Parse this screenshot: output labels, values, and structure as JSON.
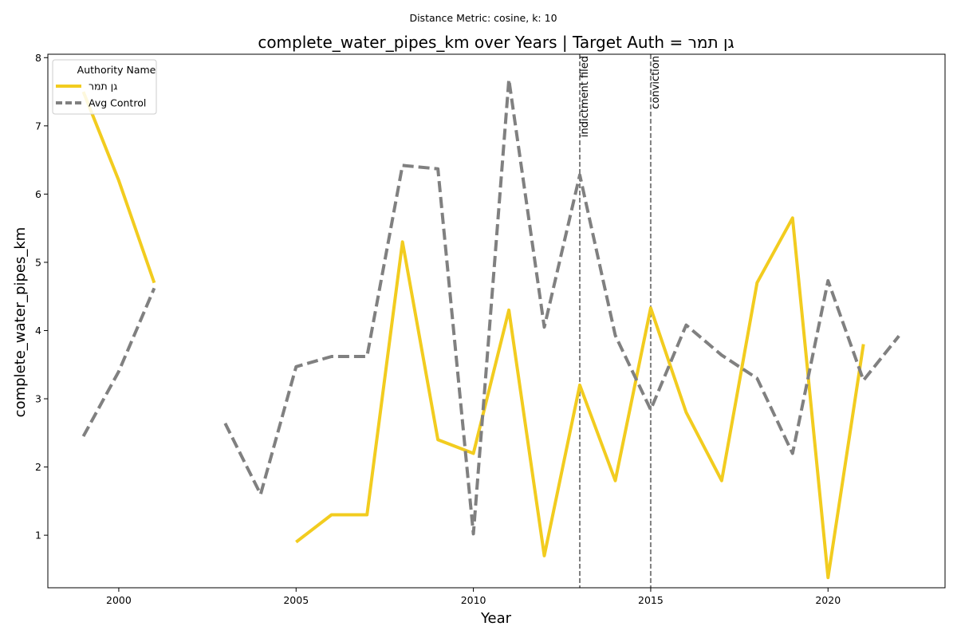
{
  "chart_data": {
    "type": "line",
    "suptitle": "Distance Metric: cosine, k: 10",
    "title": "complete_water_pipes_km over Years | Target Auth = גן תמר",
    "xlabel": "Year",
    "ylabel": "complete_water_pipes_km",
    "xlim": [
      1998.0,
      2023.3
    ],
    "ylim": [
      0.23,
      8.05
    ],
    "xticks": [
      2000,
      2005,
      2010,
      2015,
      2020
    ],
    "yticks": [
      1,
      2,
      3,
      4,
      5,
      6,
      7,
      8
    ],
    "grid": false,
    "legend": {
      "title": "Authority Name",
      "placement": "upper left"
    },
    "series": [
      {
        "name": "גן תמר",
        "color": "#f2cc1f",
        "style": "solid",
        "points": [
          [
            1999,
            7.5
          ],
          [
            2000,
            6.2
          ],
          [
            2001,
            4.7
          ],
          [
            2005,
            0.9
          ],
          [
            2006,
            1.3
          ],
          [
            2007,
            1.3
          ],
          [
            2008,
            5.3
          ],
          [
            2009,
            2.4
          ],
          [
            2010,
            2.2
          ],
          [
            2011,
            4.3
          ],
          [
            2012,
            0.7
          ],
          [
            2013,
            3.2
          ],
          [
            2014,
            1.8
          ],
          [
            2015,
            4.33
          ],
          [
            2016,
            2.8
          ],
          [
            2017,
            1.8
          ],
          [
            2018,
            4.7
          ],
          [
            2019,
            5.65
          ],
          [
            2020,
            0.38
          ],
          [
            2021,
            3.8
          ]
        ]
      },
      {
        "name": "Avg Control",
        "color": "#808080",
        "style": "dashed",
        "points": [
          [
            1999,
            2.45
          ],
          [
            2000,
            3.4
          ],
          [
            2001,
            4.62
          ],
          [
            2003,
            2.64
          ],
          [
            2004,
            1.6
          ],
          [
            2005,
            3.47
          ],
          [
            2006,
            3.62
          ],
          [
            2007,
            3.62
          ],
          [
            2008,
            6.42
          ],
          [
            2009,
            6.37
          ],
          [
            2010,
            1.02
          ],
          [
            2011,
            7.68
          ],
          [
            2012,
            4.05
          ],
          [
            2013,
            6.28
          ],
          [
            2014,
            3.93
          ],
          [
            2015,
            2.84
          ],
          [
            2016,
            4.08
          ],
          [
            2017,
            3.64
          ],
          [
            2018,
            3.3
          ],
          [
            2019,
            2.2
          ],
          [
            2020,
            4.73
          ],
          [
            2021,
            3.27
          ],
          [
            2022,
            3.92
          ]
        ]
      }
    ],
    "annotations": [
      {
        "x": 2013,
        "label": "indictment filed"
      },
      {
        "x": 2015,
        "label": "conviction"
      }
    ]
  }
}
